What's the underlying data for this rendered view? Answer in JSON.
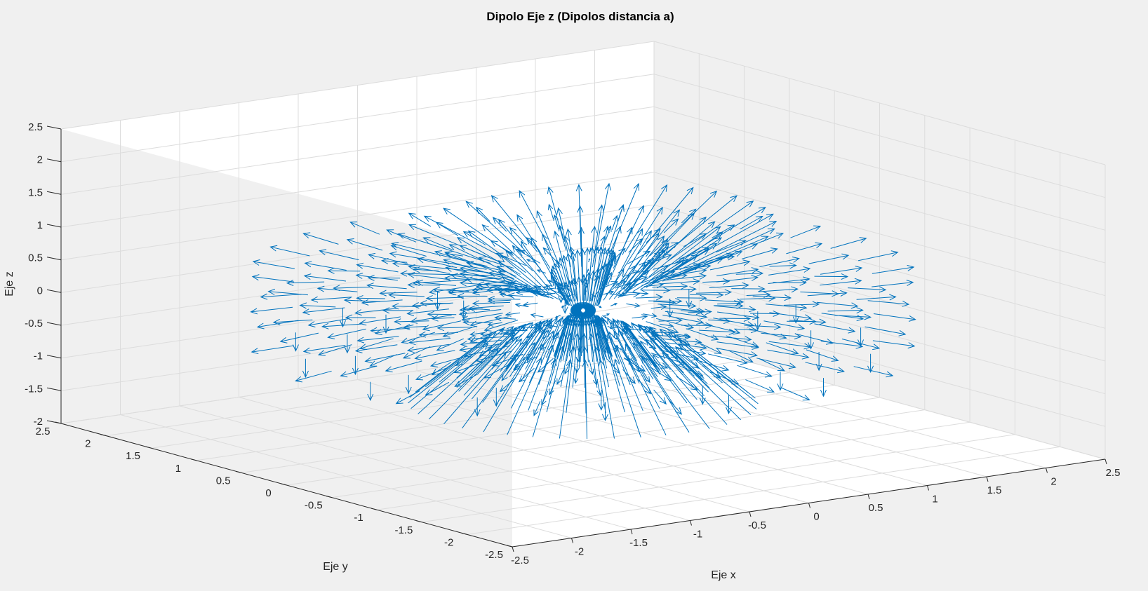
{
  "chart_data": {
    "type": "quiver3",
    "title": "Dipolo Eje z (Dipolos distancia a)",
    "xlabel": "Eje x",
    "ylabel": "Eje y",
    "zlabel": "Eje z",
    "xlim": [
      -2.5,
      2.5
    ],
    "ylim": [
      -2.5,
      2.5
    ],
    "zlim": [
      -2,
      2.5
    ],
    "xticks": [
      "-2.5",
      "-2",
      "-1.5",
      "-1",
      "-0.5",
      "0",
      "0.5",
      "1",
      "1.5",
      "2",
      "2.5"
    ],
    "yticks": [
      "-2.5",
      "-2",
      "-1.5",
      "-1",
      "-0.5",
      "0",
      "0.5",
      "1",
      "1.5",
      "2",
      "2.5"
    ],
    "zticks": [
      "-2",
      "-1.5",
      "-1",
      "-0.5",
      "0",
      "0.5",
      "1",
      "1.5",
      "2",
      "2.5"
    ],
    "grid": true,
    "series": [
      {
        "color": "#0072bd",
        "source": "dipole on z axis at origin",
        "sample_radii": [
          0.55,
          0.9,
          1.25,
          1.6,
          1.95
        ],
        "sample_azimuths": 28,
        "sample_z_levels": [
          -0.5,
          0,
          0.5
        ],
        "upper_ray_length": 2.3,
        "lower_ray_length": 2.0
      }
    ]
  }
}
